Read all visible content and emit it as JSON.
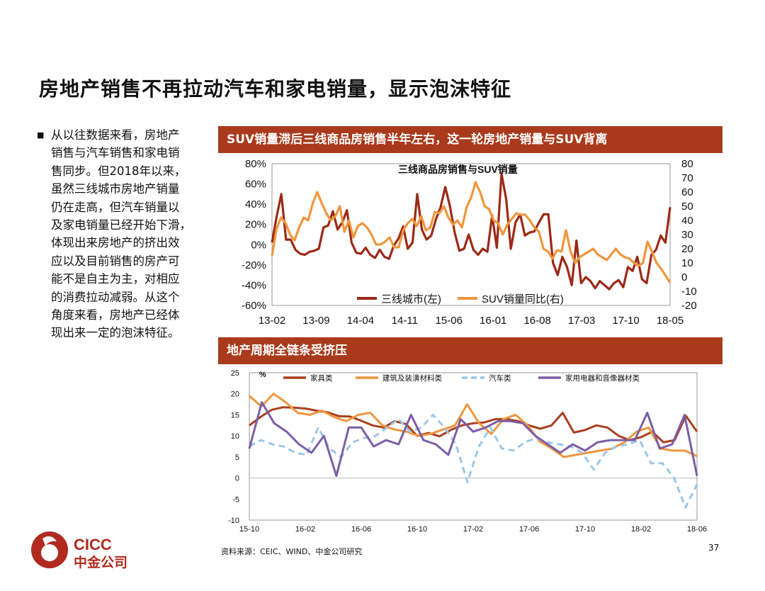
{
  "slide": {
    "title": "房地产销售不再拉动汽车和家电销量，显示泡沫特征",
    "bullet_lines": [
      "从以往数据来看，房地产",
      "销售与汽车销售和家电销",
      "售同步。但2018年以来，",
      "虽然三线城市房地产销量",
      "仍在走高，但汽车销量以",
      "及家电销量已经开始下滑，",
      "体现出来房地产的挤出效",
      "应以及目前销售的房产可",
      "能不是自主为主，对相应",
      "的消费拉动减弱。从这个",
      "角度来看，房地产已经体",
      "现出来一定的泡沫特征。"
    ],
    "source": "资料来源：CEIC、WIND、中金公司研究",
    "page_number": "37",
    "logo": {
      "en": "CICC",
      "cn": "中金公司"
    }
  },
  "chart_data": [
    {
      "type": "line",
      "header": "SUV销量滞后三线商品房销售半年左右，这一轮房地产销量与SUV背离",
      "title": "三线商品房销售与SUV销量",
      "x_ticks": [
        "13-02",
        "13-09",
        "14-04",
        "14-11",
        "15-06",
        "16-01",
        "16-08",
        "17-03",
        "17-10",
        "18-05"
      ],
      "y_left": {
        "range": [
          -60,
          80
        ],
        "ticks": [
          "80%",
          "60%",
          "40%",
          "20%",
          "0%",
          "-20%",
          "-40%",
          "-60%"
        ]
      },
      "y_right": {
        "range": [
          -20,
          80
        ],
        "ticks": [
          "80",
          "70",
          "60",
          "50",
          "40",
          "30",
          "20",
          "10",
          "0",
          "-10",
          "-20"
        ]
      },
      "series": [
        {
          "name": "三线城市(左)",
          "axis": "left",
          "color": "#9c2a17",
          "values": [
            2,
            28,
            50,
            5,
            5,
            -5,
            -9,
            -10,
            -7,
            -6,
            -4,
            17,
            19,
            33,
            15,
            22,
            34,
            2,
            -8,
            -9,
            -3,
            -10,
            -13,
            -5,
            -12,
            -14,
            -1,
            6,
            18,
            -4,
            2,
            50,
            15,
            5,
            9,
            25,
            37,
            57,
            38,
            12,
            -6,
            -4,
            10,
            -5,
            -10,
            -4,
            -7,
            29,
            -3,
            70,
            45,
            -4,
            22,
            30,
            9,
            12,
            13,
            22,
            30,
            30,
            -18,
            -30,
            -12,
            -22,
            -40,
            4,
            -38,
            -32,
            -36,
            -43,
            -36,
            -40,
            -44,
            -38,
            -35,
            -42,
            -22,
            -26,
            -12,
            -34,
            -38,
            -10,
            -5,
            9,
            2,
            37
          ]
        },
        {
          "name": "SUV销量同比(右)",
          "axis": "right",
          "color": "#f0963c",
          "values": [
            15,
            34,
            42,
            38,
            30,
            26,
            35,
            42,
            40,
            52,
            60,
            52,
            45,
            40,
            43,
            50,
            32,
            40,
            28,
            36,
            38,
            35,
            30,
            23,
            23,
            25,
            28,
            21,
            21,
            33,
            38,
            41,
            36,
            43,
            33,
            35,
            46,
            45,
            50,
            42,
            37,
            40,
            35,
            49,
            56,
            67,
            60,
            50,
            48,
            40,
            38,
            30,
            37,
            41,
            45,
            44,
            44,
            40,
            35,
            32,
            20,
            18,
            13,
            19,
            18,
            33,
            18,
            10,
            14,
            16,
            18,
            20,
            16,
            14,
            12,
            16,
            20,
            16,
            14,
            13,
            10,
            8,
            10,
            25,
            18,
            10,
            6,
            1,
            -4
          ]
        }
      ]
    },
    {
      "type": "line",
      "header": "地产周期全链条受挤压",
      "ylabel": "%",
      "x_ticks": [
        "15-10",
        "16-02",
        "16-06",
        "16-10",
        "17-02",
        "17-06",
        "17-10",
        "18-02",
        "18-06"
      ],
      "y_range": [
        -10,
        25
      ],
      "y_ticks": [
        "25",
        "20",
        "15",
        "10",
        "5",
        "0",
        "-5",
        "-10"
      ],
      "series": [
        {
          "name": "家具类",
          "color": "#a9401e",
          "style": "solid",
          "values": [
            12.5,
            14.5,
            16.2,
            16.8,
            16.7,
            16.5,
            16,
            15.6,
            14.7,
            14.6,
            13.6,
            12.5,
            12,
            13.5,
            12.8,
            10,
            10.7,
            9.9,
            11.4,
            12.5,
            13,
            13.2,
            14,
            14,
            13.5,
            12.5,
            11.7,
            12.5,
            15.5,
            10.8,
            11.4,
            12.5,
            12,
            10,
            9,
            9.7,
            11,
            8.5,
            9,
            14.8,
            11
          ]
        },
        {
          "name": "建筑及装潢材料类",
          "color": "#f0963c",
          "style": "solid",
          "values": [
            19.5,
            17,
            20,
            18,
            15.5,
            15,
            16,
            14.5,
            13.5,
            15,
            15.5,
            12.5,
            11.5,
            11,
            10,
            10.5,
            11.5,
            12.5,
            17.5,
            13,
            10.5,
            14,
            15,
            12.5,
            8.7,
            7,
            5,
            5.5,
            6,
            6.5,
            7,
            8.5,
            11,
            12,
            7,
            6.5,
            6.5,
            5.2
          ]
        },
        {
          "name": "汽车类",
          "color": "#9cc6e8",
          "style": "dashed",
          "values": [
            7.5,
            9,
            8,
            7.5,
            6,
            5.5,
            12,
            7,
            5,
            8.5,
            9.5,
            10,
            12,
            14,
            11,
            12,
            15,
            12,
            8,
            -1,
            7.5,
            12,
            7,
            6.5,
            8.5,
            9.5,
            8.5,
            8,
            7.5,
            6,
            2,
            6,
            7.5,
            8,
            9,
            3.5,
            3.5,
            0,
            -7,
            -1.5
          ]
        },
        {
          "name": "家用电器和音像器材类",
          "color": "#7b5ea7",
          "style": "solid",
          "values": [
            7,
            18,
            13,
            11,
            8,
            6,
            10,
            0.5,
            12,
            12,
            7.5,
            9,
            8,
            15,
            9,
            8,
            5.5,
            14,
            11,
            12,
            13.5,
            13.5,
            13,
            10,
            8,
            6,
            8,
            6.5,
            8.5,
            9,
            9,
            9,
            15.5,
            7,
            8,
            15,
            0.5
          ]
        }
      ]
    }
  ]
}
